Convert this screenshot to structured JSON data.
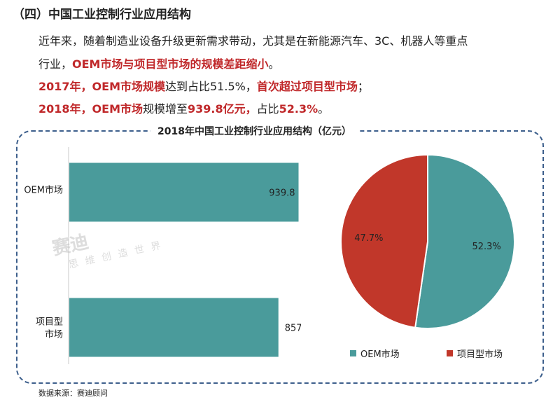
{
  "heading": "（四）中国工业控制行业应用结构",
  "paragraph": {
    "line1": "近年来，随着制造业设备升级更新需求带动，尤其是在新能源汽车、3C、机器人等重点",
    "line2_prefix": "行业，",
    "line2_highlight": "OEM市场与项目型市场的规模差距缩小",
    "line2_suffix": "。",
    "line3_a": "2017年，OEM市场规模",
    "line3_b": "达到占比51.5%，",
    "line3_c": "首次超过项目型市场",
    "line3_d": "；",
    "line4_a": "2018年，OEM市场",
    "line4_b": "规模增至",
    "line4_c": "939.8亿元，",
    "line4_d": "占比",
    "line4_e": "52.3%",
    "line4_f": "。"
  },
  "watermark": {
    "main": "赛迪",
    "sub": "思维创造世界"
  },
  "source": "数据来源：赛迪顾问",
  "colors": {
    "teal": "#4a9b9b",
    "red": "#c1372a",
    "accent": "#c0282a",
    "border": "#3d5f8c"
  },
  "chart_data": [
    {
      "type": "bar",
      "orientation": "horizontal",
      "title": "2018年中国工业控制行业应用结构（亿元）",
      "categories": [
        [
          "OEM市场"
        ],
        [
          "项目型",
          "市场"
        ]
      ],
      "values": [
        939.8,
        857.2
      ],
      "value_labels": [
        "939.8",
        "857.2"
      ],
      "color": "#4a9b9b",
      "xlim": [
        0,
        1650
      ]
    },
    {
      "type": "pie",
      "labels": [
        "OEM市场",
        "项目型市场"
      ],
      "values": [
        52.3,
        47.7
      ],
      "value_labels": [
        "52.3%",
        "47.7%"
      ],
      "colors": [
        "#4a9b9b",
        "#c1372a"
      ],
      "legend": "bottom"
    }
  ]
}
